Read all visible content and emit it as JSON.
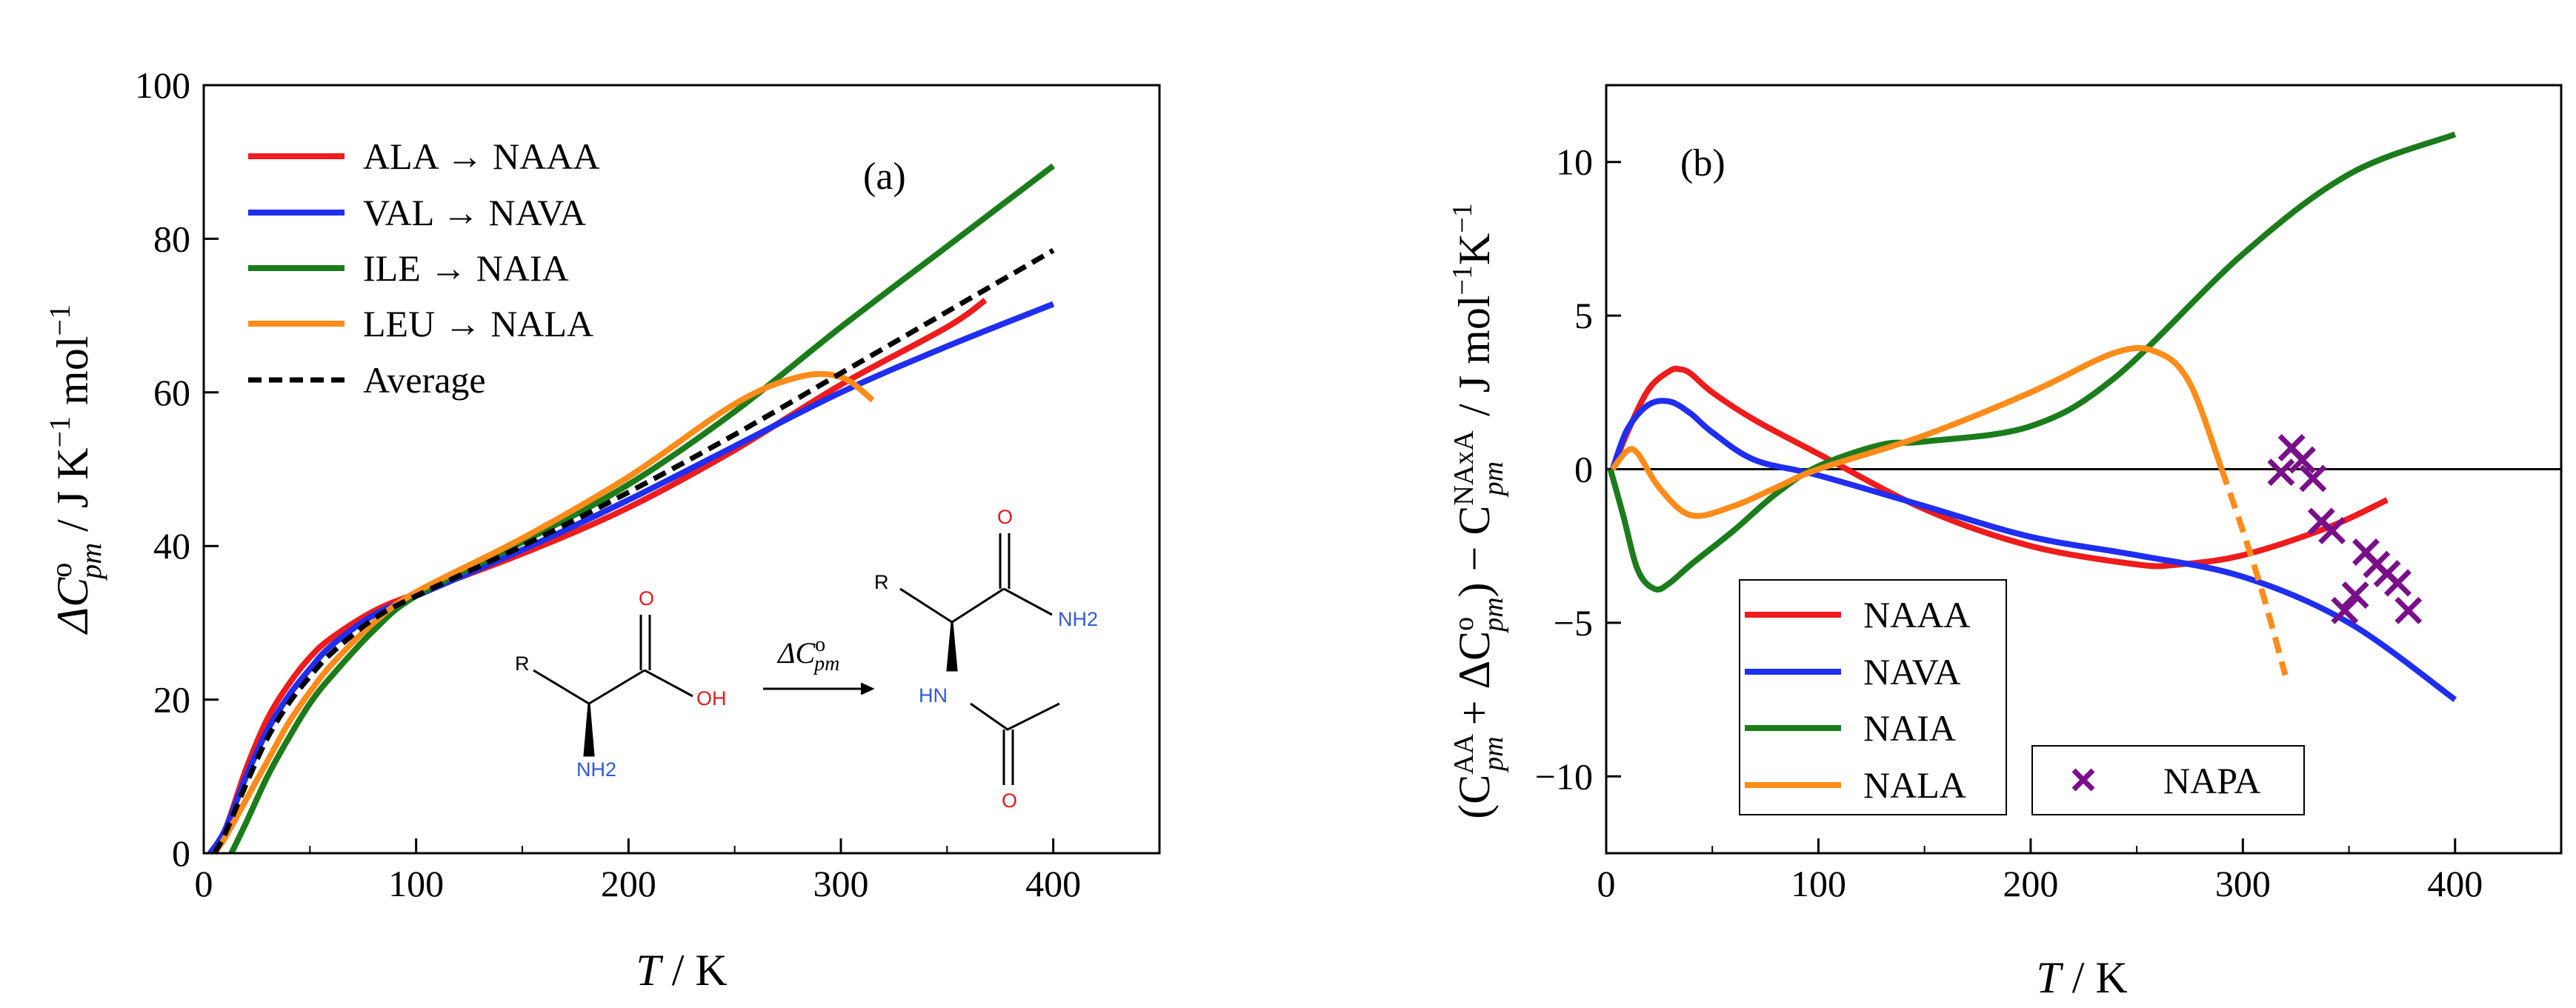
{
  "colors": {
    "red": "#ee1c1c",
    "blue": "#1f2ef0",
    "green": "#1b7c1b",
    "orange": "#ff8c1a",
    "black": "#000000",
    "purple": "#7a0f8a",
    "chem_red": "#e31a1a",
    "chem_blue": "#2f5ad6"
  },
  "chart_data": [
    {
      "type": "line",
      "panel_label": "(a)",
      "xlabel": {
        "italic": "T",
        "rest": " / K"
      },
      "ylabel": {
        "prefix": "ΔC",
        "sup": "o",
        "sub": "pm",
        "units_a": " / J K",
        "exp_a": "−1",
        "units_b": " mol",
        "exp_b": "−1"
      },
      "xlim": [
        0,
        450
      ],
      "ylim": [
        0,
        100
      ],
      "xticks": [
        0,
        100,
        200,
        300,
        400
      ],
      "yticks": [
        0,
        20,
        40,
        60,
        80,
        100
      ],
      "xtick_labels": [
        "0",
        "100",
        "200",
        "300",
        "400"
      ],
      "ytick_labels": [
        "0",
        "20",
        "40",
        "60",
        "80",
        "100"
      ],
      "legend_position": "top-left",
      "series": [
        {
          "name": "ALA → NAAA",
          "color": "red",
          "dash": false,
          "x": [
            3,
            10,
            20,
            30,
            40,
            50,
            60,
            80,
            100,
            150,
            200,
            250,
            300,
            350,
            368
          ],
          "y": [
            0,
            3,
            11,
            17.5,
            22,
            25.5,
            28,
            31.5,
            33.8,
            39,
            45,
            52.5,
            61,
            68.5,
            72
          ]
        },
        {
          "name": "VAL → NAVA",
          "color": "blue",
          "dash": false,
          "x": [
            3,
            10,
            20,
            30,
            40,
            50,
            60,
            80,
            100,
            150,
            200,
            250,
            300,
            350,
            400
          ],
          "y": [
            0,
            3,
            10,
            16,
            20.5,
            24,
            27,
            31,
            33.5,
            39.5,
            46,
            53,
            60,
            66,
            71.5
          ]
        },
        {
          "name": "ILE → NAIA",
          "color": "green",
          "dash": false,
          "x": [
            13,
            20,
            30,
            40,
            50,
            60,
            80,
            100,
            150,
            200,
            250,
            300,
            350,
            400
          ],
          "y": [
            0,
            4,
            10,
            15,
            19.5,
            23,
            29,
            33.5,
            40.5,
            48,
            57.5,
            68.5,
            79,
            89.5
          ]
        },
        {
          "name": "LEU → NALA",
          "color": "orange",
          "dash": false,
          "x": [
            5,
            10,
            20,
            30,
            40,
            50,
            60,
            80,
            100,
            150,
            200,
            250,
            280,
            300,
            315
          ],
          "y": [
            0,
            2,
            7,
            12,
            17,
            21,
            24.5,
            30,
            34,
            41,
            49,
            58.5,
            62,
            62,
            59
          ]
        },
        {
          "name": "Average",
          "color": "black",
          "dash": true,
          "x": [
            5,
            10,
            20,
            30,
            40,
            50,
            60,
            80,
            100,
            150,
            200,
            250,
            300,
            350,
            400
          ],
          "y": [
            0,
            2.5,
            9,
            15,
            19.5,
            23,
            26,
            30.5,
            33.5,
            40,
            47,
            54.5,
            62.5,
            70.5,
            78.5
          ]
        }
      ],
      "scheme_labels": [
        "R",
        "O",
        "OH",
        "NH2",
        "R",
        "O",
        "NH2",
        "HN",
        "O"
      ],
      "arrow_label": {
        "prefix": "ΔC",
        "sup": "o",
        "sub": "pm"
      }
    },
    {
      "type": "line",
      "panel_label": "(b)",
      "xlabel": {
        "italic": "T",
        "rest": " / K"
      },
      "ylabel": {
        "open": "(C",
        "sup1": "AA",
        "sub1": "pm",
        "plus": " + ΔC",
        "sup2": "o",
        "sub2": "pm",
        "close": ") − C",
        "sup3": "NAxA",
        "sub3": "pm",
        "units": " / J mol",
        "exp1": "−1",
        "units2": "K",
        "exp2": "−1"
      },
      "xlim": [
        0,
        450
      ],
      "ylim": [
        -12.5,
        12.5
      ],
      "xticks": [
        0,
        100,
        200,
        300,
        400
      ],
      "yticks": [
        -10,
        -5,
        0,
        5,
        10
      ],
      "xtick_labels": [
        "0",
        "100",
        "200",
        "300",
        "400"
      ],
      "ytick_labels": [
        "−10",
        "−5",
        "0",
        "5",
        "10"
      ],
      "zero_line": 0,
      "legend_position": "bottom-left",
      "series": [
        {
          "name": "NAAA",
          "color": "red",
          "dash": false,
          "x": [
            3,
            10,
            20,
            30,
            35,
            40,
            50,
            70,
            100,
            150,
            200,
            250,
            270,
            300,
            340,
            368
          ],
          "y": [
            0,
            1.2,
            2.6,
            3.2,
            3.25,
            3.1,
            2.5,
            1.6,
            0.5,
            -1.3,
            -2.5,
            -3.1,
            -3.1,
            -2.8,
            -1.9,
            -1.0
          ]
        },
        {
          "name": "NAVA",
          "color": "blue",
          "dash": false,
          "x": [
            3,
            10,
            20,
            30,
            40,
            50,
            70,
            100,
            150,
            200,
            250,
            300,
            350,
            400
          ],
          "y": [
            0,
            1.3,
            2.1,
            2.2,
            1.8,
            1.2,
            0.3,
            -0.2,
            -1.2,
            -2.2,
            -2.8,
            -3.5,
            -5.0,
            -7.5
          ]
        },
        {
          "name": "NAIA",
          "color": "green",
          "dash": false,
          "x": [
            2,
            8,
            15,
            23,
            30,
            40,
            60,
            80,
            100,
            130,
            150,
            200,
            240,
            300,
            350,
            400
          ],
          "y": [
            0,
            -1.5,
            -3.3,
            -3.9,
            -3.7,
            -3.1,
            -2.0,
            -0.8,
            0.1,
            0.8,
            0.9,
            1.4,
            3.0,
            7.0,
            9.6,
            10.9
          ]
        },
        {
          "name": "NALA",
          "color": "orange",
          "dash": false,
          "x": [
            3,
            10,
            15,
            25,
            40,
            60,
            80,
            100,
            150,
            200,
            240,
            260,
            275,
            290
          ],
          "y": [
            0,
            0.6,
            0.5,
            -0.6,
            -1.5,
            -1.2,
            -0.6,
            0.0,
            1.1,
            2.5,
            3.8,
            3.8,
            2.8,
            0.0
          ]
        },
        {
          "name": "NALA (dashed)",
          "color": "orange",
          "dash": true,
          "x": [
            290,
            300,
            310,
            320
          ],
          "y": [
            0.0,
            -2.0,
            -4.2,
            -6.7
          ]
        },
        {
          "name": "NAPA",
          "color": "purple",
          "marker": "x",
          "x": [
            318,
            323,
            328,
            333,
            337,
            342,
            348,
            353,
            358,
            363,
            368,
            373,
            378
          ],
          "y": [
            -0.1,
            0.7,
            0.3,
            -0.3,
            -1.7,
            -2.0,
            -4.6,
            -4.1,
            -2.7,
            -3.1,
            -3.4,
            -3.7,
            -4.6
          ]
        }
      ],
      "legend_main": [
        "NAAA",
        "NAVA",
        "NAIA",
        "NALA"
      ],
      "legend_markers": [
        "NAPA"
      ]
    }
  ]
}
